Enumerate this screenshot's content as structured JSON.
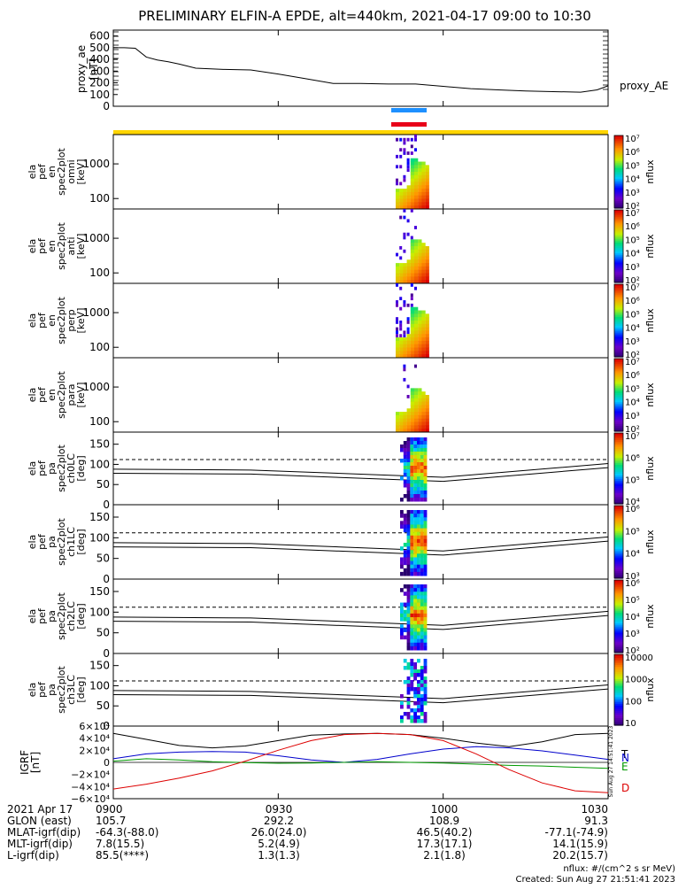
{
  "title": "PRELIMINARY ELFIN-A EPDE, alt=440km, 2021-04-17 09:00 to 10:30",
  "colors": {
    "frame": "#000000",
    "bar_blue": "#1e90ff",
    "bar_red": "#e8001a",
    "bar_yellow": "#ffd500",
    "igrf_N": "#0000cc",
    "igrf_E": "#009900",
    "igrf_D": "#dd0000",
    "igrf_T": "#000000"
  },
  "chart_data": [
    {
      "type": "line",
      "panel": "proxy_ae",
      "ylabel": "proxy_ae [nT]",
      "right_label": "proxy_AE",
      "ylim": [
        0,
        650
      ],
      "yticks": [
        "0",
        "100",
        "200",
        "300",
        "400",
        "500",
        "600"
      ],
      "x_minutes": [
        0,
        2,
        4,
        6,
        8,
        10,
        12,
        15,
        20,
        25,
        30,
        35,
        40,
        45,
        50,
        55,
        60,
        65,
        70,
        75,
        80,
        85,
        88,
        90
      ],
      "values": [
        500,
        500,
        495,
        420,
        395,
        380,
        360,
        325,
        315,
        310,
        275,
        235,
        195,
        195,
        190,
        190,
        170,
        150,
        140,
        130,
        125,
        120,
        140,
        175
      ]
    },
    {
      "type": "heatmap",
      "panel": "ela pef en spec2plot omni",
      "ylabel": "ela pef en spec2plot omni [keV]",
      "yscale": "log",
      "yticks": [
        "100",
        "1000"
      ],
      "colorbar_label": "nflux",
      "colorbar_ticks": [
        "10²",
        "10³",
        "10⁴",
        "10⁵",
        "10⁶",
        "10⁷"
      ]
    },
    {
      "type": "heatmap",
      "panel": "ela pef en spec2plot anti",
      "ylabel": "ela pef en spec2plot anti [keV]",
      "yscale": "log",
      "yticks": [
        "100",
        "1000"
      ],
      "colorbar_label": "nflux",
      "colorbar_ticks": [
        "10²",
        "10³",
        "10⁴",
        "10⁵",
        "10⁶",
        "10⁷"
      ]
    },
    {
      "type": "heatmap",
      "panel": "ela pef en spec2plot perp",
      "ylabel": "ela pef en spec2plot perp [keV]",
      "yscale": "log",
      "yticks": [
        "100",
        "1000"
      ],
      "colorbar_label": "nflux",
      "colorbar_ticks": [
        "10²",
        "10³",
        "10⁴",
        "10⁵",
        "10⁶",
        "10⁷"
      ]
    },
    {
      "type": "heatmap",
      "panel": "ela pef en spec2plot para",
      "ylabel": "ela pef en spec2plot para [keV]",
      "yscale": "log",
      "yticks": [
        "100",
        "1000"
      ],
      "colorbar_label": "nflux",
      "colorbar_ticks": [
        "10²",
        "10³",
        "10⁴",
        "10⁵",
        "10⁶",
        "10⁷"
      ]
    },
    {
      "type": "heatmap",
      "panel": "ela pef pa spec2plot ch0LC",
      "ylabel": "ela pef pa spec2plot ch0LC [deg]",
      "yticks": [
        "0",
        "50",
        "100",
        "150"
      ],
      "ylim": [
        0,
        180
      ],
      "colorbar_label": "nflux",
      "colorbar_ticks": [
        "10⁴",
        "10⁵",
        "10⁶",
        "10⁷"
      ]
    },
    {
      "type": "heatmap",
      "panel": "ela pef pa spec2plot ch1LC",
      "ylabel": "ela pef pa spec2plot ch1LC [deg]",
      "yticks": [
        "0",
        "50",
        "100",
        "150"
      ],
      "ylim": [
        0,
        180
      ],
      "colorbar_label": "nflux",
      "colorbar_ticks": [
        "10³",
        "10⁴",
        "10⁵",
        "10⁶"
      ]
    },
    {
      "type": "heatmap",
      "panel": "ela pef pa spec2plot ch2LC",
      "ylabel": "ela pef pa spec2plot ch2LC [deg]",
      "yticks": [
        "0",
        "50",
        "100",
        "150"
      ],
      "ylim": [
        0,
        180
      ],
      "colorbar_label": "nflux",
      "colorbar_ticks": [
        "10²",
        "10³",
        "10⁴",
        "10⁵",
        "10⁶"
      ]
    },
    {
      "type": "heatmap",
      "panel": "ela pef pa spec2plot ch3LC",
      "ylabel": "ela pef pa spec2plot ch3LC [deg]",
      "yticks": [
        "0",
        "50",
        "100",
        "150"
      ],
      "ylim": [
        0,
        180
      ],
      "colorbar_label": "nflux",
      "colorbar_ticks": [
        "10",
        "100",
        "1000",
        "10000"
      ]
    },
    {
      "type": "line",
      "panel": "IGRF",
      "ylabel": "IGRF [nT]",
      "yticks": [
        "−6×10⁴",
        "−4×10⁴",
        "−2×10⁴",
        "0",
        "2×10⁴",
        "4×10⁴",
        "6×10⁴"
      ],
      "ylim": [
        -60000,
        60000
      ],
      "series": [
        {
          "name": "T",
          "x_minutes": [
            0,
            6,
            12,
            18,
            24,
            30,
            36,
            42,
            48,
            54,
            60,
            66,
            72,
            78,
            84,
            90
          ],
          "values": [
            48000,
            38000,
            28000,
            24000,
            27000,
            36000,
            45000,
            47000,
            48000,
            46000,
            40000,
            32000,
            26000,
            34000,
            46000,
            48000
          ]
        },
        {
          "name": "N",
          "x_minutes": [
            0,
            6,
            12,
            18,
            24,
            30,
            36,
            42,
            48,
            54,
            60,
            66,
            72,
            78,
            84,
            90
          ],
          "values": [
            6000,
            14000,
            17000,
            18000,
            17000,
            11000,
            4000,
            0,
            5000,
            14000,
            22000,
            26000,
            24000,
            19000,
            12000,
            5000
          ]
        },
        {
          "name": "E",
          "x_minutes": [
            0,
            6,
            12,
            18,
            24,
            30,
            36,
            42,
            48,
            54,
            60,
            66,
            72,
            78,
            84,
            90
          ],
          "values": [
            2000,
            6000,
            4000,
            1000,
            -500,
            -1500,
            -1000,
            0,
            1000,
            0,
            -1000,
            -3000,
            -5000,
            -6000,
            -8000,
            -10000
          ]
        },
        {
          "name": "D",
          "x_minutes": [
            0,
            6,
            12,
            18,
            24,
            30,
            36,
            42,
            48,
            54,
            60,
            66,
            72,
            78,
            84,
            90
          ],
          "values": [
            -44000,
            -36000,
            -26000,
            -14000,
            2000,
            20000,
            36000,
            46000,
            48000,
            46000,
            36000,
            14000,
            -12000,
            -34000,
            -47000,
            -50000
          ]
        }
      ]
    }
  ],
  "time_axis": {
    "date": "2021 Apr 17",
    "ticks": [
      "0900",
      "0930",
      "1000",
      "1030"
    ],
    "tick_minutes": [
      0,
      30,
      60,
      90
    ]
  },
  "footer": {
    "labels": [
      "2021 Apr 17",
      "GLON (east)",
      "MLAT-igrf(dip)",
      "MLT-igrf(dip)",
      "L-igrf(dip)"
    ],
    "rows": [
      [
        "0900",
        "0930",
        "1000",
        "1030"
      ],
      [
        "105.7",
        "292.2",
        "108.9",
        "91.3"
      ],
      [
        "-64.3(-88.0)",
        "26.0(24.0)",
        "46.5(40.2)",
        "-77.1(-74.9)"
      ],
      [
        "7.8(15.5)",
        "5.2(4.9)",
        "17.3(17.1)",
        "14.1(15.9)"
      ],
      [
        "85.5(****)",
        "1.3(1.3)",
        "2.1(1.8)",
        "20.2(15.7)"
      ]
    ],
    "units_note": "nflux: #/(cm^2 s sr MeV)",
    "created": "Created: Sun Aug 27 21:51:41 2023",
    "side_stamp": "Sun Aug 27 14:51:41 2023"
  }
}
